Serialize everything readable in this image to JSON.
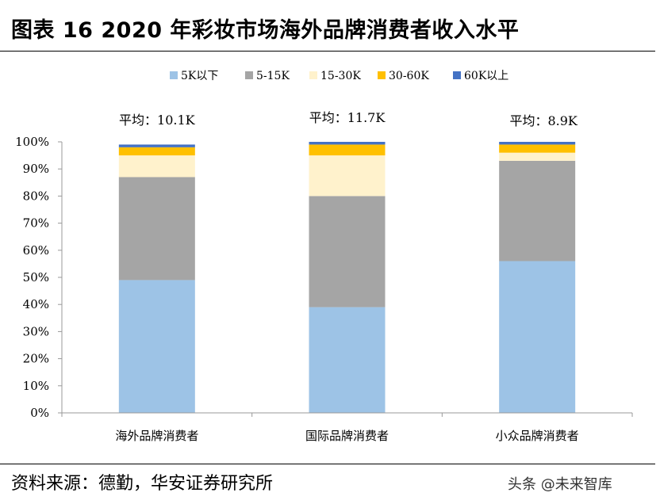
{
  "title": "图表 16 2020 年彩妆市场海外品牌消费者收入水平",
  "source": "资料来源：德勤，华安证券研究所",
  "watermark": "头条 @未来智库",
  "chart_data": {
    "type": "bar",
    "stacked": true,
    "percent": true,
    "categories": [
      "海外品牌消费者",
      "国际品牌消费者",
      "小众品牌消费者"
    ],
    "averages": [
      "平均：10.1K",
      "平均：11.7K",
      "平均：8.9K"
    ],
    "series": [
      {
        "name": "5K以下",
        "color": "#9dc3e6",
        "values": [
          49,
          39,
          56
        ]
      },
      {
        "name": "5-15K",
        "color": "#a5a5a5",
        "values": [
          38,
          41,
          37
        ]
      },
      {
        "name": "15-30K",
        "color": "#fff2cc",
        "values": [
          8,
          15,
          3
        ]
      },
      {
        "name": "30-60K",
        "color": "#ffc000",
        "values": [
          3,
          4,
          3
        ]
      },
      {
        "name": "60K以上",
        "color": "#4472c4",
        "values": [
          1,
          1,
          1
        ]
      }
    ],
    "yticks": [
      "0%",
      "10%",
      "20%",
      "30%",
      "40%",
      "50%",
      "60%",
      "70%",
      "80%",
      "90%",
      "100%"
    ],
    "ylim": [
      0,
      100
    ],
    "legend_position": "top"
  }
}
